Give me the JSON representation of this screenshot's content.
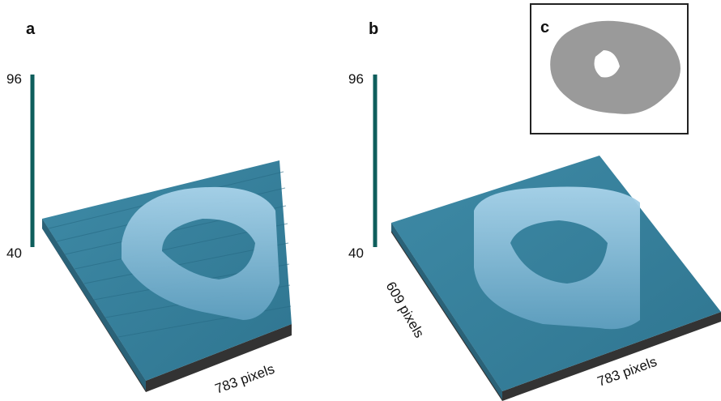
{
  "panels": [
    {
      "label": "a",
      "scale": {
        "max": 96,
        "min": 40
      },
      "x_axis": "783 pixels"
    },
    {
      "label": "b",
      "scale": {
        "max": 96,
        "min": 40
      },
      "x_axis": "783 pixels",
      "y_axis": "609 pixels"
    }
  ],
  "inset": {
    "label": "c"
  }
}
